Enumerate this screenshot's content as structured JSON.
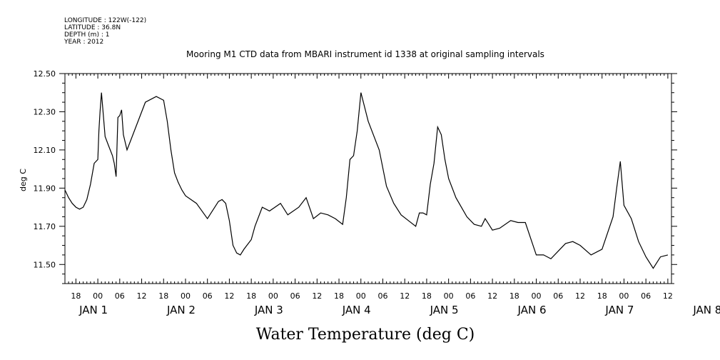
{
  "header": {
    "longitude": "LONGITUDE : 122W(-122)",
    "latitude": "LATITUDE : 36.8N",
    "depth": "DEPTH (m) : 1",
    "year": "YEAR : 2012"
  },
  "chart_data": {
    "type": "line",
    "title": "Mooring M1 CTD data from MBARI instrument id 1338 at original sampling intervals",
    "xlabel": "Water Temperature (deg C)",
    "ylabel": "deg C",
    "ylim": [
      11.4,
      12.5
    ],
    "xlim_hours": [
      -9,
      157
    ],
    "yticks": [
      "11.50",
      "11.70",
      "11.90",
      "12.10",
      "12.30",
      "12.50"
    ],
    "xticks_hour": [
      "18",
      "00",
      "06",
      "12",
      "18",
      "00",
      "06",
      "12",
      "18",
      "00",
      "06",
      "12",
      "18",
      "00",
      "06",
      "12",
      "18",
      "00",
      "06",
      "12",
      "18",
      "00",
      "06",
      "12",
      "18",
      "00",
      "06",
      "12"
    ],
    "day_labels": [
      "JAN  1",
      "JAN  2",
      "JAN  3",
      "JAN  4",
      "JAN  5",
      "JAN  6",
      "JAN  7",
      "JAN  8"
    ],
    "line_color": "#000000",
    "grid": false,
    "series": [
      {
        "hours": [
          -9,
          -8,
          -7,
          -6,
          -5,
          -4,
          -3,
          -2,
          -1,
          0,
          0.3,
          0.6,
          1,
          2,
          3,
          4,
          4.5,
          5,
          5.5,
          6,
          6.5,
          7,
          8,
          9,
          13,
          16,
          18,
          19,
          20,
          21,
          22,
          23,
          24,
          27,
          30,
          33,
          34,
          35,
          36,
          37,
          38,
          39,
          40,
          42,
          43,
          45,
          47,
          50,
          52,
          55,
          57,
          59,
          61,
          63,
          65,
          67,
          68,
          69,
          70,
          71,
          72,
          74,
          77,
          79,
          81,
          83,
          85,
          87,
          88,
          89,
          90,
          91,
          92,
          93,
          94,
          95,
          96,
          98,
          101,
          103,
          105,
          106,
          107,
          108,
          110,
          113,
          115,
          117,
          120,
          122,
          124,
          126,
          128,
          130,
          132,
          135,
          138,
          141,
          142,
          143,
          144,
          146,
          148,
          150,
          152,
          154,
          156
        ],
        "values": [
          11.89,
          11.85,
          11.82,
          11.8,
          11.79,
          11.8,
          11.84,
          11.92,
          12.03,
          12.05,
          12.2,
          12.3,
          12.4,
          12.17,
          12.12,
          12.07,
          12.03,
          11.96,
          12.27,
          12.28,
          12.31,
          12.18,
          12.1,
          12.15,
          12.35,
          12.38,
          12.36,
          12.25,
          12.1,
          11.98,
          11.93,
          11.89,
          11.86,
          11.82,
          11.74,
          11.83,
          11.84,
          11.82,
          11.73,
          11.6,
          11.56,
          11.55,
          11.58,
          11.63,
          11.7,
          11.8,
          11.78,
          11.82,
          11.76,
          11.8,
          11.85,
          11.74,
          11.77,
          11.76,
          11.74,
          11.71,
          11.85,
          12.05,
          12.07,
          12.2,
          12.4,
          12.25,
          12.1,
          11.91,
          11.82,
          11.76,
          11.73,
          11.7,
          11.77,
          11.77,
          11.76,
          11.92,
          12.03,
          12.22,
          12.18,
          12.05,
          11.95,
          11.85,
          11.75,
          11.71,
          11.7,
          11.74,
          11.71,
          11.68,
          11.69,
          11.73,
          11.72,
          11.72,
          11.55,
          11.55,
          11.53,
          11.57,
          11.61,
          11.62,
          11.6,
          11.55,
          11.58,
          11.75,
          11.9,
          12.04,
          11.81,
          11.74,
          11.62,
          11.54,
          11.48,
          11.54,
          11.55
        ]
      }
    ]
  }
}
